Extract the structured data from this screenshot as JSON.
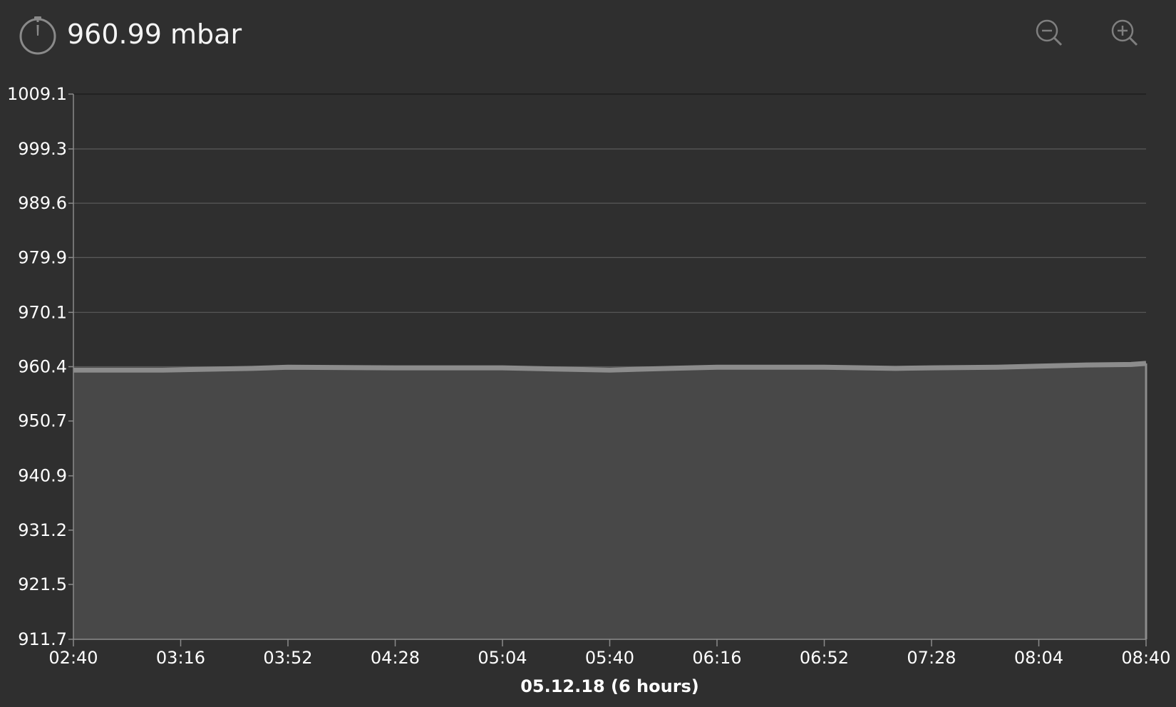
{
  "header": {
    "reading": "960.99 mbar",
    "gauge_icon": "stopwatch-gauge-icon",
    "zoom_out_icon": "zoom-out-icon",
    "zoom_in_icon": "zoom-in-icon"
  },
  "colors": {
    "background": "#2f2f2f",
    "area_fill": "#484848",
    "line": "#8c8c8c",
    "grid": "#5a5a5a",
    "text": "#ffffff"
  },
  "chart_data": {
    "type": "area",
    "title": "",
    "xlabel": "05.12.18 (6 hours)",
    "ylabel": "",
    "grid": true,
    "legend": "none",
    "ylim": [
      911.7,
      1009.1
    ],
    "xlim": [
      "02:40",
      "08:40"
    ],
    "y_ticks": [
      "1009.1",
      "999.3",
      "989.6",
      "979.9",
      "970.1",
      "960.4",
      "950.7",
      "940.9",
      "931.2",
      "921.5",
      "911.7"
    ],
    "x_ticks": [
      "02:40",
      "03:16",
      "03:52",
      "04:28",
      "05:04",
      "05:40",
      "06:16",
      "06:52",
      "07:28",
      "08:04",
      "08:40"
    ],
    "series": [
      {
        "x": [
          "02:40",
          "03:10",
          "03:40",
          "03:52",
          "04:28",
          "05:04",
          "05:20",
          "05:40",
          "06:00",
          "06:16",
          "06:52",
          "07:16",
          "07:28",
          "07:50",
          "08:04",
          "08:20",
          "08:35",
          "08:40"
        ],
        "values": [
          959.8,
          959.8,
          960.1,
          960.3,
          960.2,
          960.2,
          960.0,
          959.8,
          960.1,
          960.3,
          960.3,
          960.1,
          960.2,
          960.3,
          960.5,
          960.7,
          960.8,
          960.99
        ]
      }
    ]
  }
}
